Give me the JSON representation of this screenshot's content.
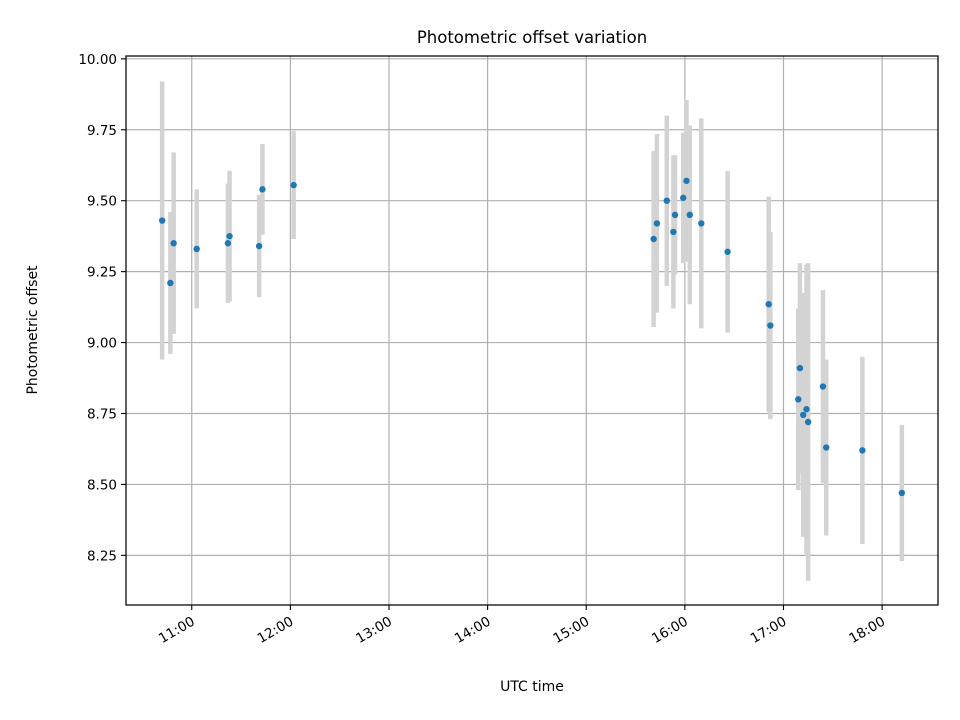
{
  "chart_data": {
    "type": "scatter",
    "title": "Photometric offset variation",
    "xlabel": "UTC time",
    "ylabel": "Photometric offset",
    "x_ticks": [
      "11:00",
      "12:00",
      "13:00",
      "14:00",
      "15:00",
      "16:00",
      "17:00",
      "18:00"
    ],
    "y_ticks": [
      "8.25",
      "8.50",
      "8.75",
      "9.00",
      "9.25",
      "9.50",
      "9.75",
      "10.00"
    ],
    "xlim": [
      "10:20",
      "18:34"
    ],
    "ylim": [
      8.075,
      10.01
    ],
    "grid": true,
    "point_color": "#1f77b4",
    "errorbar_color": "#d3d3d3",
    "points": [
      {
        "x": "10:42",
        "y": 9.43,
        "err": 0.49
      },
      {
        "x": "10:47",
        "y": 9.21,
        "err": 0.25
      },
      {
        "x": "10:49",
        "y": 9.35,
        "err": 0.32
      },
      {
        "x": "11:03",
        "y": 9.33,
        "err": 0.21
      },
      {
        "x": "11:22",
        "y": 9.35,
        "err": 0.21
      },
      {
        "x": "11:23",
        "y": 9.375,
        "err": 0.23
      },
      {
        "x": "11:41",
        "y": 9.34,
        "err": 0.18
      },
      {
        "x": "11:43",
        "y": 9.54,
        "err": 0.16
      },
      {
        "x": "12:02",
        "y": 9.555,
        "err": 0.19
      },
      {
        "x": "15:41",
        "y": 9.365,
        "err": 0.31
      },
      {
        "x": "15:43",
        "y": 9.42,
        "err": 0.315
      },
      {
        "x": "15:49",
        "y": 9.5,
        "err": 0.3
      },
      {
        "x": "15:53",
        "y": 9.39,
        "err": 0.27
      },
      {
        "x": "15:54",
        "y": 9.45,
        "err": 0.21
      },
      {
        "x": "15:59",
        "y": 9.51,
        "err": 0.23
      },
      {
        "x": "16:01",
        "y": 9.57,
        "err": 0.285
      },
      {
        "x": "16:03",
        "y": 9.45,
        "err": 0.315
      },
      {
        "x": "16:10",
        "y": 9.42,
        "err": 0.37
      },
      {
        "x": "16:26",
        "y": 9.32,
        "err": 0.285
      },
      {
        "x": "16:51",
        "y": 9.135,
        "err": 0.38
      },
      {
        "x": "16:52",
        "y": 9.06,
        "err": 0.33
      },
      {
        "x": "17:09",
        "y": 8.8,
        "err": 0.32
      },
      {
        "x": "17:10",
        "y": 8.91,
        "err": 0.37
      },
      {
        "x": "17:12",
        "y": 8.745,
        "err": 0.43
      },
      {
        "x": "17:14",
        "y": 8.765,
        "err": 0.51
      },
      {
        "x": "17:15",
        "y": 8.72,
        "err": 0.56
      },
      {
        "x": "17:24",
        "y": 8.845,
        "err": 0.34
      },
      {
        "x": "17:26",
        "y": 8.63,
        "err": 0.31
      },
      {
        "x": "17:48",
        "y": 8.62,
        "err": 0.33
      },
      {
        "x": "18:12",
        "y": 8.47,
        "err": 0.24
      }
    ]
  }
}
